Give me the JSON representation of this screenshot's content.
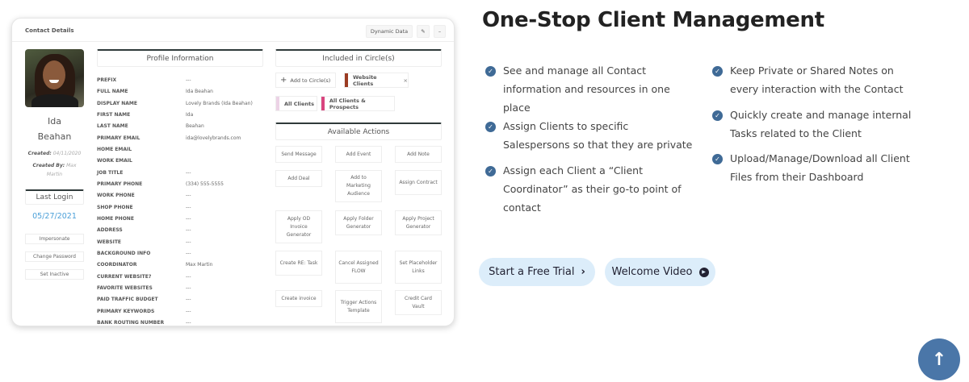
{
  "card": {
    "title": "Contact Details",
    "dynamic_data": "Dynamic Data",
    "name_first": "Ida",
    "name_last": "Beahan",
    "created_label": "Created:",
    "created_value": "04/11/2020",
    "created_by_label": "Created By:",
    "created_by_value": "Max Martin",
    "last_login_label": "Last Login",
    "last_login_value": "05/27/2021",
    "buttons": [
      "Impersonate",
      "Change Password",
      "Set Inactive"
    ],
    "profile_title": "Profile Information",
    "fields": [
      [
        "PREFIX",
        "---"
      ],
      [
        "FULL NAME",
        "Ida Beahan"
      ],
      [
        "DISPLAY NAME",
        "Lovely Brands (Ida Beahan)"
      ],
      [
        "FIRST NAME",
        "Ida"
      ],
      [
        "LAST NAME",
        "Beahan"
      ],
      [
        "PRIMARY EMAIL",
        "ida@lovelybrands.com"
      ],
      [
        "HOME EMAIL",
        ""
      ],
      [
        "WORK EMAIL",
        ""
      ],
      [
        "JOB TITLE",
        "---"
      ],
      [
        "PRIMARY PHONE",
        "(334) 555-5555"
      ],
      [
        "WORK PHONE",
        "---"
      ],
      [
        "SHOP PHONE",
        "---"
      ],
      [
        "HOME PHONE",
        "---"
      ],
      [
        "ADDRESS",
        "---"
      ],
      [
        "WEBSITE",
        "---"
      ],
      [
        "BACKGROUND INFO",
        "---"
      ],
      [
        "COORDINATOR",
        "Max Martin"
      ],
      [
        "CURRENT WEBSITE?",
        "---"
      ],
      [
        "FAVORITE WEBSITES",
        "---"
      ],
      [
        "PAID TRAFFIC BUDGET",
        "---"
      ],
      [
        "PRIMARY KEYWORDS",
        "---"
      ],
      [
        "BANK ROUTING NUMBER",
        "---"
      ]
    ],
    "circles_title": "Included in Circle(s)",
    "add_circle": "Add to Circle(s)",
    "circles": [
      {
        "name": "Website Clients",
        "color": "#9b3b22"
      },
      {
        "name": "All Clients",
        "color": "#ecd3e6"
      },
      {
        "name": "All Clients & Prospects",
        "color": "#d9457f"
      }
    ],
    "actions_title": "Available Actions",
    "actions": [
      "Send Message",
      "Add Event",
      "Add Note",
      "Add Deal",
      "Add to Marketing Audience",
      "Assign Contract",
      "Apply OD Invoice Generator",
      "Apply Folder Generator",
      "Apply Project Generator",
      "Create RE: Task",
      "Cancel Assigned FLOW",
      "Set Placeholder Links",
      "Create invoice",
      "Trigger Actions Template",
      "Credit Card Vault"
    ]
  },
  "hero": {
    "title": "One-Stop Client Management",
    "bullets_left": [
      "See and manage all Contact information and resources in one place",
      "Assign Clients to specific Salespersons so that they are private",
      "Assign each Client a “Client Coordinator” as their go-to point of contact"
    ],
    "bullets_right": [
      "Keep Private or Shared Notes on every interaction with the Contact",
      "Quickly create and manage internal Tasks related to the Client",
      "Upload/Manage/Download all Client Files from their Dashboard"
    ],
    "trial_button": "Start a Free Trial",
    "video_button": "Welcome Video"
  },
  "colors": {
    "accent": "#3f6a96",
    "pill": "#dcedfa",
    "scroll_top": "#4a76a8",
    "login_date": "#4a9fd8"
  }
}
